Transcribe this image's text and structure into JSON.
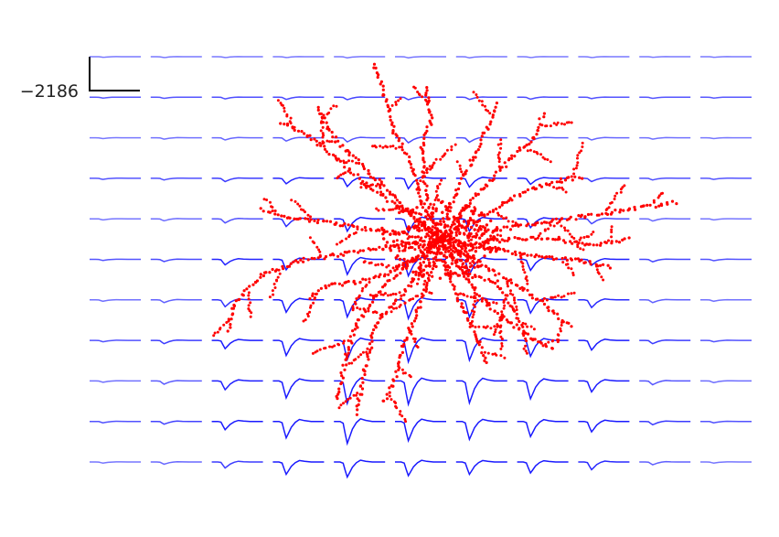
{
  "chart_data": {
    "type": "waveform-grid-with-morphology",
    "scale_bar": {
      "label": "−2186"
    },
    "grid": {
      "rows": 11,
      "cols": 11
    },
    "waveform_trough_amplitudes": [
      [
        0.02,
        0.03,
        0.03,
        0.03,
        0.04,
        0.04,
        0.04,
        0.03,
        0.03,
        0.02,
        0.02
      ],
      [
        0.03,
        0.04,
        0.06,
        0.08,
        0.09,
        0.09,
        0.08,
        0.07,
        0.05,
        0.04,
        0.03
      ],
      [
        0.03,
        0.05,
        0.08,
        0.12,
        0.15,
        0.18,
        0.16,
        0.12,
        0.08,
        0.05,
        0.03
      ],
      [
        0.04,
        0.06,
        0.12,
        0.2,
        0.3,
        0.38,
        0.32,
        0.22,
        0.12,
        0.06,
        0.04
      ],
      [
        0.04,
        0.07,
        0.15,
        0.28,
        0.45,
        0.5,
        0.45,
        0.32,
        0.18,
        0.08,
        0.04
      ],
      [
        0.04,
        0.08,
        0.2,
        0.38,
        0.55,
        0.6,
        0.55,
        0.4,
        0.22,
        0.09,
        0.05
      ],
      [
        0.05,
        0.1,
        0.25,
        0.45,
        0.62,
        0.68,
        0.62,
        0.48,
        0.28,
        0.1,
        0.05
      ],
      [
        0.05,
        0.12,
        0.3,
        0.55,
        0.7,
        0.78,
        0.72,
        0.58,
        0.35,
        0.12,
        0.05
      ],
      [
        0.05,
        0.12,
        0.32,
        0.62,
        0.82,
        0.85,
        0.8,
        0.65,
        0.4,
        0.14,
        0.06
      ],
      [
        0.05,
        0.1,
        0.3,
        0.6,
        0.8,
        0.7,
        0.65,
        0.55,
        0.38,
        0.12,
        0.05
      ],
      [
        0.04,
        0.08,
        0.22,
        0.45,
        0.55,
        0.5,
        0.45,
        0.4,
        0.28,
        0.1,
        0.04
      ]
    ],
    "waveform_color": "#1a1aff",
    "morphology": {
      "color": "#ff0000",
      "soma": [
        0.5,
        0.5
      ],
      "branches": [
        [
          [
            0.5,
            0.5
          ],
          [
            0.46,
            0.4
          ],
          [
            0.44,
            0.3
          ],
          [
            0.4,
            0.2
          ],
          [
            0.38,
            0.1
          ],
          [
            0.36,
            0.02
          ]
        ],
        [
          [
            0.5,
            0.5
          ],
          [
            0.42,
            0.42
          ],
          [
            0.34,
            0.35
          ],
          [
            0.28,
            0.28
          ],
          [
            0.22,
            0.22
          ],
          [
            0.16,
            0.18
          ]
        ],
        [
          [
            0.5,
            0.5
          ],
          [
            0.47,
            0.38
          ],
          [
            0.46,
            0.25
          ],
          [
            0.48,
            0.18
          ],
          [
            0.47,
            0.08
          ]
        ],
        [
          [
            0.5,
            0.5
          ],
          [
            0.55,
            0.42
          ],
          [
            0.6,
            0.35
          ],
          [
            0.65,
            0.28
          ],
          [
            0.7,
            0.22
          ],
          [
            0.72,
            0.16
          ]
        ],
        [
          [
            0.5,
            0.5
          ],
          [
            0.6,
            0.48
          ],
          [
            0.7,
            0.46
          ],
          [
            0.8,
            0.44
          ],
          [
            0.9,
            0.42
          ],
          [
            1.0,
            0.4
          ]
        ],
        [
          [
            0.5,
            0.5
          ],
          [
            0.62,
            0.53
          ],
          [
            0.72,
            0.55
          ],
          [
            0.8,
            0.56
          ],
          [
            0.86,
            0.58
          ]
        ],
        [
          [
            0.5,
            0.5
          ],
          [
            0.55,
            0.6
          ],
          [
            0.6,
            0.68
          ],
          [
            0.66,
            0.74
          ],
          [
            0.7,
            0.78
          ],
          [
            0.74,
            0.8
          ]
        ],
        [
          [
            0.5,
            0.5
          ],
          [
            0.48,
            0.6
          ],
          [
            0.45,
            0.7
          ],
          [
            0.42,
            0.8
          ],
          [
            0.4,
            0.9
          ],
          [
            0.38,
            0.95
          ]
        ],
        [
          [
            0.5,
            0.5
          ],
          [
            0.42,
            0.58
          ],
          [
            0.36,
            0.66
          ],
          [
            0.32,
            0.74
          ],
          [
            0.3,
            0.82
          ],
          [
            0.28,
            0.94
          ]
        ],
        [
          [
            0.5,
            0.5
          ],
          [
            0.4,
            0.52
          ],
          [
            0.3,
            0.54
          ],
          [
            0.2,
            0.56
          ],
          [
            0.12,
            0.6
          ],
          [
            0.06,
            0.68
          ],
          [
            0.05,
            0.75
          ]
        ],
        [
          [
            0.5,
            0.5
          ],
          [
            0.38,
            0.48
          ],
          [
            0.28,
            0.46
          ],
          [
            0.18,
            0.44
          ],
          [
            0.12,
            0.42
          ]
        ],
        [
          [
            0.5,
            0.5
          ],
          [
            0.52,
            0.6
          ],
          [
            0.55,
            0.7
          ],
          [
            0.58,
            0.78
          ],
          [
            0.6,
            0.84
          ]
        ],
        [
          [
            0.5,
            0.5
          ],
          [
            0.58,
            0.45
          ],
          [
            0.64,
            0.4
          ],
          [
            0.7,
            0.36
          ],
          [
            0.76,
            0.34
          ],
          [
            0.8,
            0.33
          ]
        ],
        [
          [
            0.5,
            0.5
          ],
          [
            0.45,
            0.45
          ],
          [
            0.4,
            0.38
          ],
          [
            0.35,
            0.32
          ],
          [
            0.3,
            0.26
          ],
          [
            0.26,
            0.2
          ],
          [
            0.24,
            0.14
          ]
        ],
        [
          [
            0.5,
            0.5
          ],
          [
            0.53,
            0.38
          ],
          [
            0.57,
            0.28
          ],
          [
            0.6,
            0.2
          ],
          [
            0.62,
            0.13
          ]
        ],
        [
          [
            0.5,
            0.5
          ],
          [
            0.6,
            0.58
          ],
          [
            0.68,
            0.64
          ],
          [
            0.74,
            0.7
          ],
          [
            0.78,
            0.74
          ]
        ],
        [
          [
            0.5,
            0.5
          ],
          [
            0.44,
            0.56
          ],
          [
            0.38,
            0.6
          ],
          [
            0.32,
            0.62
          ],
          [
            0.26,
            0.63
          ],
          [
            0.22,
            0.66
          ]
        ],
        [
          [
            0.5,
            0.5
          ],
          [
            0.55,
            0.52
          ],
          [
            0.65,
            0.5
          ],
          [
            0.75,
            0.5
          ],
          [
            0.82,
            0.52
          ],
          [
            0.9,
            0.5
          ]
        ],
        [
          [
            0.5,
            0.5
          ],
          [
            0.47,
            0.55
          ],
          [
            0.44,
            0.62
          ],
          [
            0.4,
            0.68
          ],
          [
            0.36,
            0.74
          ],
          [
            0.34,
            0.86
          ],
          [
            0.32,
            0.98
          ]
        ],
        [
          [
            0.5,
            0.5
          ],
          [
            0.53,
            0.56
          ],
          [
            0.56,
            0.6
          ],
          [
            0.62,
            0.62
          ],
          [
            0.66,
            0.7
          ],
          [
            0.68,
            0.76
          ]
        ]
      ]
    }
  }
}
